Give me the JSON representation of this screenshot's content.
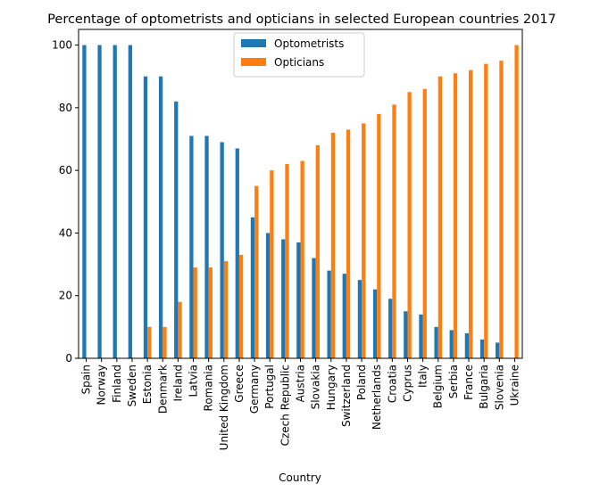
{
  "chart_data": {
    "type": "bar",
    "title": "Percentage of optometrists and opticians in selected European countries 2017",
    "xlabel": "Country",
    "ylabel": "",
    "ylim": [
      0,
      105
    ],
    "yticks": [
      0,
      20,
      40,
      60,
      80,
      100
    ],
    "grid": false,
    "legend_position": "top-center",
    "categories": [
      "Spain",
      "Norway",
      "Finland",
      "Sweden",
      "Estonia",
      "Denmark",
      "Ireland",
      "Latvia",
      "Romania",
      "United Kingdom",
      "Greece",
      "Germany",
      "Portugal",
      "Czech Republic",
      "Austria",
      "Slovakia",
      "Hungary",
      "Switzerland",
      "Poland",
      "Netherlands",
      "Croatia",
      "Cyprus",
      "Italy",
      "Belgium",
      "Serbia",
      "France",
      "Bulgaria",
      "Slovenia",
      "Ukraine"
    ],
    "series": [
      {
        "name": "Optometrists",
        "color": "#1f77b4",
        "values": [
          100,
          100,
          100,
          100,
          90,
          90,
          82,
          71,
          71,
          69,
          67,
          45,
          40,
          38,
          37,
          32,
          28,
          27,
          25,
          22,
          19,
          15,
          14,
          10,
          9,
          8,
          6,
          5,
          0
        ]
      },
      {
        "name": "Opticians",
        "color": "#ff7f0e",
        "values": [
          0,
          0,
          0,
          0,
          10,
          10,
          18,
          29,
          29,
          31,
          33,
          55,
          60,
          62,
          63,
          68,
          72,
          73,
          75,
          78,
          81,
          85,
          86,
          90,
          91,
          92,
          94,
          95,
          100
        ]
      }
    ]
  }
}
